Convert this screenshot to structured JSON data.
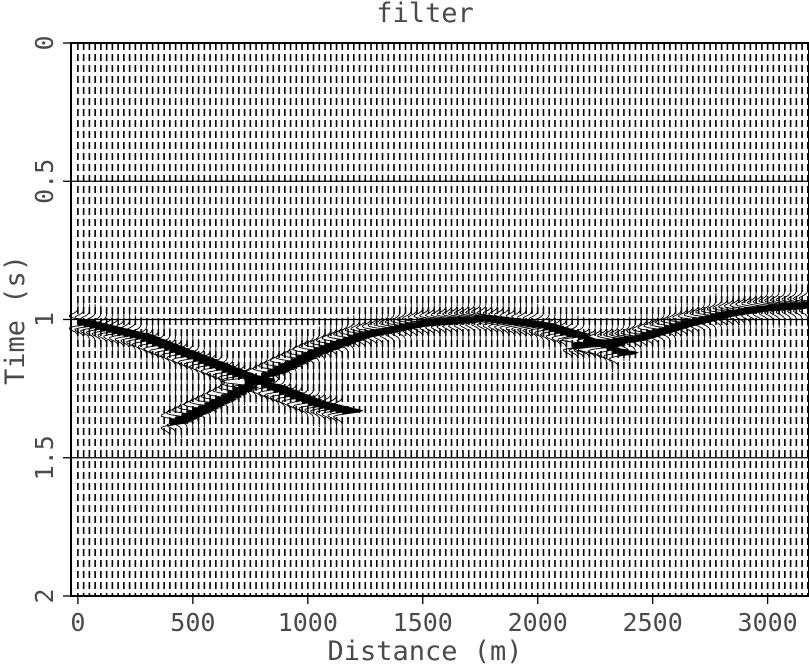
{
  "chart_data": {
    "type": "seismic-wiggle",
    "title": "filter",
    "xlabel": "Distance (m)",
    "ylabel": "Time (s)",
    "xlim": [
      -30,
      3180
    ],
    "ylim": [
      0,
      2
    ],
    "y_inverted": true,
    "x_ticks": [
      0,
      500,
      1000,
      1500,
      2000,
      2500,
      3000
    ],
    "x_tick_labels": [
      "0",
      "500",
      "1000",
      "1500",
      "2000",
      "2500",
      "3000"
    ],
    "y_ticks": [
      0,
      0.5,
      1,
      1.5,
      2
    ],
    "y_tick_labels": [
      "0",
      "0.5",
      "1",
      "1.5",
      "2"
    ],
    "horizontal_gridlines_at": [
      0.5,
      1,
      1.5
    ],
    "trace_spacing_m": 25,
    "trace_count": 128,
    "events": [
      {
        "name": "",
        "x_range": [
          0,
          1150
        ],
        "points": [
          [
            0,
            1.01
          ],
          [
            250,
            1.06
          ],
          [
            500,
            1.14
          ],
          [
            750,
            1.22
          ],
          [
            1000,
            1.3
          ],
          [
            1150,
            1.33
          ]
        ]
      },
      {
        "name": "",
        "x_range": [
          380,
          2350
        ],
        "points": [
          [
            400,
            1.37
          ],
          [
            600,
            1.29
          ],
          [
            800,
            1.2
          ],
          [
            1000,
            1.12
          ],
          [
            1200,
            1.06
          ],
          [
            1500,
            1.01
          ],
          [
            1750,
            0.995
          ],
          [
            2000,
            1.02
          ],
          [
            2200,
            1.07
          ],
          [
            2350,
            1.12
          ]
        ]
      },
      {
        "name": "",
        "x_range": [
          2150,
          3180
        ],
        "points": [
          [
            2200,
            1.09
          ],
          [
            2400,
            1.07
          ],
          [
            2600,
            1.02
          ],
          [
            2800,
            0.98
          ],
          [
            3000,
            0.955
          ],
          [
            3180,
            0.945
          ]
        ]
      }
    ],
    "colors": {
      "trace": "#000000",
      "text": "#4a4a4a",
      "frame": "#000000"
    }
  }
}
